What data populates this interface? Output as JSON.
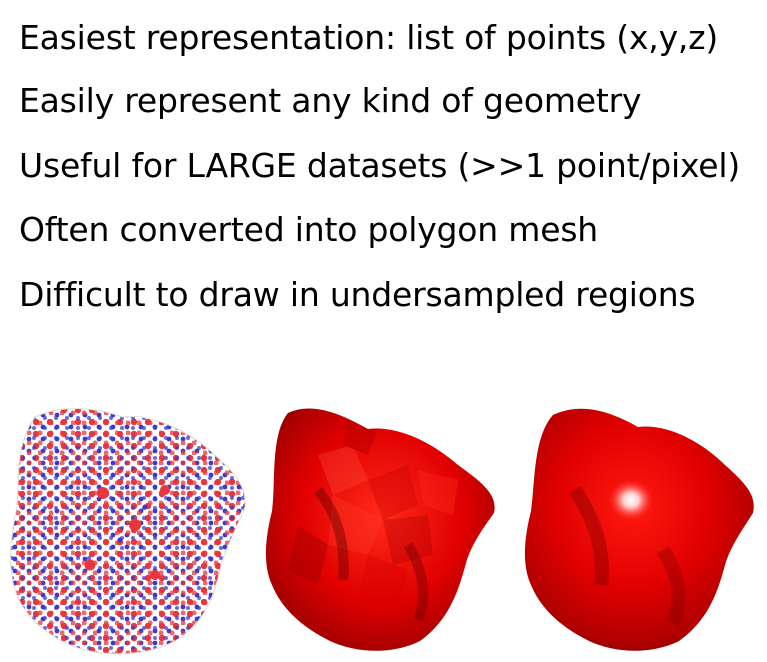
{
  "slide": {
    "bullets": [
      "Easiest representation: list of points (x,y,z)",
      "Easily represent any kind of geometry",
      "Useful for LARGE datasets (>>1 point/pixel)",
      "Often converted into polygon mesh",
      "Difficult to draw in undersampled regions"
    ]
  },
  "figures": [
    {
      "name": "point-cloud-rendering",
      "colors": [
        "#e8363c",
        "#3a3ad0",
        "#ffffff"
      ]
    },
    {
      "name": "faceted-polygon-mesh-rendering",
      "colors": [
        "#e00000",
        "#7a0000"
      ]
    },
    {
      "name": "smooth-surface-rendering",
      "colors": [
        "#e00000",
        "#ffffff",
        "#6a0000"
      ]
    }
  ]
}
